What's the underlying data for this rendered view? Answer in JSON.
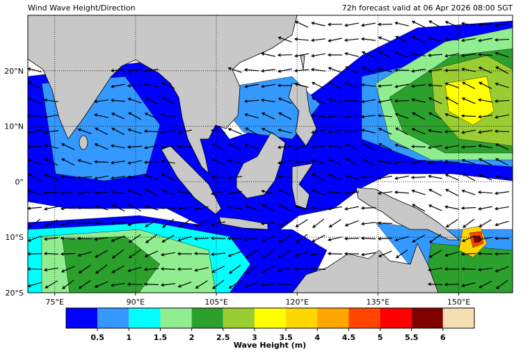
{
  "map": {
    "title": "Wind Wave Height/Direction",
    "valid_time": "72h forecast valid at 06 Apr 2026 08:00 SGT",
    "lon_range": [
      70,
      160
    ],
    "lat_range": [
      -20,
      30
    ],
    "lon_ticks": [
      {
        "value": 75,
        "label": "75°E"
      },
      {
        "value": 90,
        "label": "90°E"
      },
      {
        "value": 105,
        "label": "105°E"
      },
      {
        "value": 120,
        "label": "120°E"
      },
      {
        "value": 135,
        "label": "135°E"
      },
      {
        "value": 150,
        "label": "150°E"
      }
    ],
    "lat_ticks": [
      {
        "value": 20,
        "label": "20°N"
      },
      {
        "value": 10,
        "label": "10°N"
      },
      {
        "value": 0,
        "label": "0°"
      },
      {
        "value": -10,
        "label": "10°S"
      },
      {
        "value": -20,
        "label": "20°S"
      }
    ],
    "colorbar": {
      "label": "Wave Height (m)",
      "levels": [
        0.5,
        1,
        1.5,
        2,
        2.5,
        3,
        3.5,
        4,
        4.5,
        5,
        5.5,
        6
      ],
      "colors": [
        "#0000ff",
        "#3399ff",
        "#00ffff",
        "#90ee90",
        "#2ca02c",
        "#9acd32",
        "#ffff00",
        "#ffd700",
        "#ffa500",
        "#ff4500",
        "#ff0000",
        "#800000",
        "#f5deb3"
      ]
    }
  }
}
